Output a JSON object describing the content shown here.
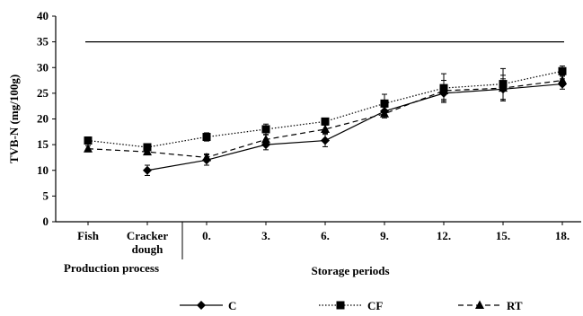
{
  "chart_data": {
    "type": "line",
    "title": "",
    "ylabel": "TVB-N (mg/100g)",
    "ylim": [
      0,
      40
    ],
    "yticks": [
      0,
      5,
      10,
      15,
      20,
      25,
      30,
      35,
      40
    ],
    "grid": false,
    "categories": [
      "Fish",
      "Cracker dough",
      "0.",
      "3.",
      "6.",
      "9.",
      "12.",
      "15.",
      "18."
    ],
    "category_lines": [
      [
        "Fish"
      ],
      [
        "Cracker",
        "dough"
      ],
      [
        "0."
      ],
      [
        "3."
      ],
      [
        "6."
      ],
      [
        "9."
      ],
      [
        "12."
      ],
      [
        "15."
      ],
      [
        "18."
      ]
    ],
    "group_labels": {
      "production": "Production process",
      "storage": "Storage periods"
    },
    "reference_line": {
      "y": 35
    },
    "series": [
      {
        "name": "C",
        "marker": "diamond",
        "line_style": "solid",
        "values": [
          null,
          10.0,
          12.0,
          15.0,
          15.8,
          21.5,
          25.0,
          25.8,
          26.8
        ],
        "errors": [
          null,
          1.0,
          1.0,
          1.0,
          1.2,
          0.8,
          1.2,
          2.0,
          1.0
        ]
      },
      {
        "name": "CF",
        "marker": "square",
        "line_style": "dotted",
        "values": [
          15.8,
          14.5,
          16.5,
          18.0,
          19.5,
          23.0,
          26.0,
          26.8,
          29.3
        ],
        "errors": [
          0.7,
          0.6,
          0.8,
          1.0,
          0.5,
          1.8,
          2.8,
          3.0,
          1.0
        ]
      },
      {
        "name": "RT",
        "marker": "triangle",
        "line_style": "dashed",
        "values": [
          14.2,
          13.6,
          12.5,
          16.0,
          18.0,
          21.0,
          25.5,
          26.0,
          27.5
        ],
        "errors": [
          0.6,
          0.5,
          0.7,
          0.9,
          0.8,
          0.8,
          2.0,
          2.5,
          1.0
        ]
      }
    ]
  }
}
